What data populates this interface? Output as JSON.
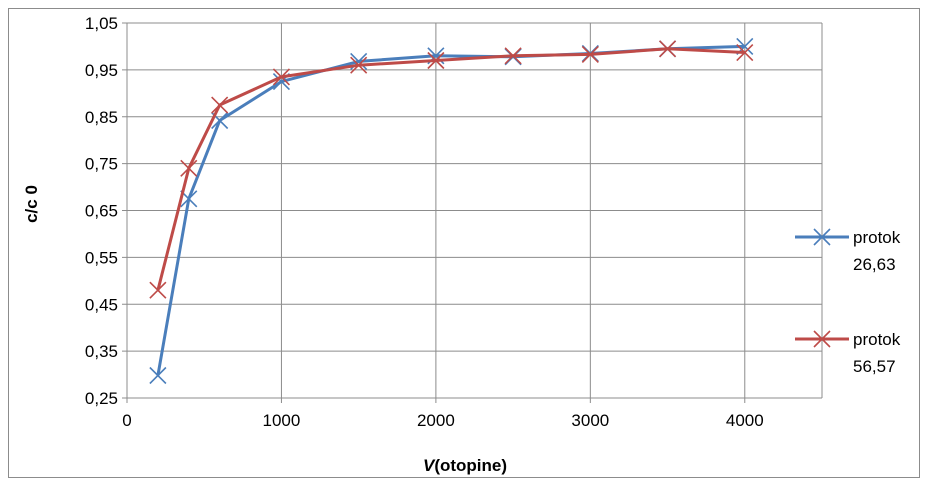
{
  "chart_data": {
    "type": "line",
    "title": "",
    "xlabel": "V(otopine)",
    "xlabel_parts": [
      "V",
      "(otopine)"
    ],
    "ylabel": "c/c 0",
    "xlim": [
      0,
      4500
    ],
    "ylim": [
      0.25,
      1.05
    ],
    "xticks": [
      0,
      1000,
      2000,
      3000,
      4000
    ],
    "xtick_labels": [
      "0",
      "1000",
      "2000",
      "3000",
      "4000"
    ],
    "yticks": [
      0.25,
      0.35,
      0.45,
      0.55,
      0.65,
      0.75,
      0.85,
      0.95,
      1.05
    ],
    "ytick_labels": [
      "0,25",
      "0,35",
      "0,45",
      "0,55",
      "0,65",
      "0,75",
      "0,85",
      "0,95",
      "1,05"
    ],
    "grid": true,
    "legend_position": "right",
    "series": [
      {
        "name": "protok 26,63",
        "name_lines": [
          "protok",
          "26,63"
        ],
        "color": "#4a7ebb",
        "marker": "x",
        "x": [
          200,
          400,
          600,
          1000,
          1500,
          2000,
          2500,
          3000,
          3500,
          4000
        ],
        "y": [
          0.298,
          0.675,
          0.842,
          0.925,
          0.968,
          0.98,
          0.978,
          0.985,
          0.995,
          1.0
        ]
      },
      {
        "name": "protok 56,57",
        "name_lines": [
          "protok",
          "56,57"
        ],
        "color": "#be4b48",
        "marker": "x",
        "x": [
          200,
          400,
          600,
          1000,
          1500,
          2000,
          2500,
          3000,
          3500,
          4000
        ],
        "y": [
          0.48,
          0.74,
          0.875,
          0.935,
          0.96,
          0.97,
          0.98,
          0.983,
          0.995,
          0.987
        ]
      }
    ]
  }
}
